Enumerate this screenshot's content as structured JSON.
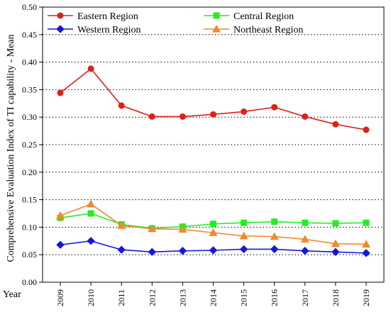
{
  "chart_data": {
    "type": "line",
    "title": "",
    "xlabel": "Year",
    "ylabel": "Comprehensive Evaluation Index of TI capability - Mean",
    "x": [
      "2009",
      "2010",
      "2011",
      "2012",
      "2013",
      "2014",
      "2015",
      "2016",
      "2017",
      "2018",
      "2019"
    ],
    "ylim": [
      0,
      0.5
    ],
    "yticks": [
      "0.00",
      "0.05",
      "0.10",
      "0.15",
      "0.20",
      "0.25",
      "0.30",
      "0.35",
      "0.40",
      "0.45",
      "0.50"
    ],
    "grid": "horizontal dotted",
    "legend_placement": "top",
    "series": [
      {
        "name": "Eastern Region",
        "color": "#e0201b",
        "marker": "circle",
        "values": [
          0.344,
          0.388,
          0.321,
          0.301,
          0.301,
          0.305,
          0.31,
          0.318,
          0.301,
          0.287,
          0.277
        ]
      },
      {
        "name": "Central Region",
        "color": "#22ee22",
        "marker": "square",
        "values": [
          0.117,
          0.125,
          0.105,
          0.098,
          0.101,
          0.106,
          0.108,
          0.11,
          0.108,
          0.107,
          0.108
        ]
      },
      {
        "name": "Western Region",
        "color": "#1616e0",
        "marker": "diamond",
        "values": [
          0.068,
          0.075,
          0.059,
          0.055,
          0.057,
          0.058,
          0.06,
          0.06,
          0.057,
          0.055,
          0.053
        ]
      },
      {
        "name": "Northeast Region",
        "color": "#f08a30",
        "marker": "triangle",
        "values": [
          0.121,
          0.142,
          0.103,
          0.097,
          0.096,
          0.09,
          0.084,
          0.083,
          0.078,
          0.07,
          0.069
        ]
      }
    ]
  }
}
